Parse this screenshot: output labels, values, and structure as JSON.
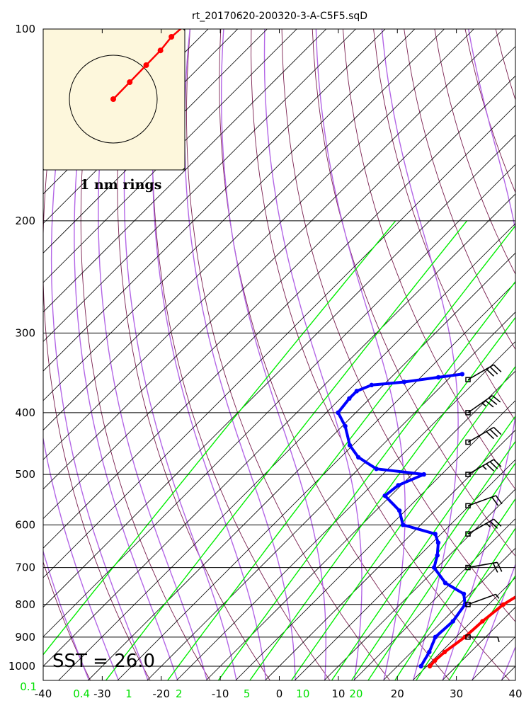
{
  "chart_data": {
    "type": "skew-t",
    "title": "rt_20170620-200320-3-A-C5F5.sqD",
    "pressure_ticks": [
      100,
      200,
      300,
      400,
      500,
      600,
      700,
      800,
      900,
      1000
    ],
    "temperature_ticks": [
      -40,
      -30,
      -20,
      -10,
      0,
      10,
      20,
      30,
      40
    ],
    "mixing_ratio_labels": [
      {
        "label": "0.1",
        "t_at_1000": -42.5
      },
      {
        "label": "0.4",
        "t_at_1000": -33.5
      },
      {
        "label": "1",
        "t_at_1000": -25.5
      },
      {
        "label": "2",
        "t_at_1000": -17
      },
      {
        "label": "5",
        "t_at_1000": -5.5
      },
      {
        "label": "10",
        "t_at_1000": 4
      },
      {
        "label": "20",
        "t_at_1000": 13
      }
    ],
    "plim": [
      100,
      1050
    ],
    "xlim": [
      -40,
      40
    ],
    "temperature_profile": [
      {
        "p": 1000,
        "t": 25.5
      },
      {
        "p": 980,
        "t": 25.4
      },
      {
        "p": 950,
        "t": 25.6
      },
      {
        "p": 900,
        "t": 26.5
      },
      {
        "p": 850,
        "t": 26.8
      },
      {
        "p": 800,
        "t": 27.5
      },
      {
        "p": 760,
        "t": 29.0
      },
      {
        "p": 700,
        "t": 29.5
      },
      {
        "p": 660,
        "t": 30.0
      },
      {
        "p": 620,
        "t": 26.5
      },
      {
        "p": 580,
        "t": 21.5
      },
      {
        "p": 550,
        "t": 20.0
      },
      {
        "p": 500,
        "t": 15.5
      },
      {
        "p": 480,
        "t": 13.5
      },
      {
        "p": 460,
        "t": 11.5
      },
      {
        "p": 440,
        "t": 10.5
      },
      {
        "p": 420,
        "t": 9.5
      },
      {
        "p": 400,
        "t": 7.5
      },
      {
        "p": 380,
        "t": 5.2
      },
      {
        "p": 360,
        "t": 3.0
      },
      {
        "p": 350,
        "t": 1.5
      }
    ],
    "dewpoint_profile": [
      {
        "p": 1000,
        "t": 24.0
      },
      {
        "p": 950,
        "t": 23.0
      },
      {
        "p": 900,
        "t": 21.5
      },
      {
        "p": 850,
        "t": 21.8
      },
      {
        "p": 800,
        "t": 21.0
      },
      {
        "p": 770,
        "t": 19.0
      },
      {
        "p": 740,
        "t": 14.0
      },
      {
        "p": 700,
        "t": 9.5
      },
      {
        "p": 670,
        "t": 8.0
      },
      {
        "p": 640,
        "t": 6.0
      },
      {
        "p": 620,
        "t": 4.0
      },
      {
        "p": 600,
        "t": -3.0
      },
      {
        "p": 570,
        "t": -6.0
      },
      {
        "p": 540,
        "t": -11.0
      },
      {
        "p": 520,
        "t": -10.5
      },
      {
        "p": 500,
        "t": -8.0
      },
      {
        "p": 490,
        "t": -17.0
      },
      {
        "p": 470,
        "t": -22.0
      },
      {
        "p": 450,
        "t": -25.5
      },
      {
        "p": 420,
        "t": -29.5
      },
      {
        "p": 400,
        "t": -33.0
      },
      {
        "p": 380,
        "t": -33.5
      },
      {
        "p": 370,
        "t": -33.5
      },
      {
        "p": 362,
        "t": -32.0
      },
      {
        "p": 358,
        "t": -27.0
      },
      {
        "p": 352,
        "t": -22.0
      },
      {
        "p": 348,
        "t": -18.5
      }
    ],
    "wind_barbs": [
      {
        "p": 355,
        "dir": 240,
        "spd": 30
      },
      {
        "p": 400,
        "dir": 235,
        "spd": 35
      },
      {
        "p": 445,
        "dir": 240,
        "spd": 30
      },
      {
        "p": 500,
        "dir": 240,
        "spd": 35
      },
      {
        "p": 560,
        "dir": 250,
        "spd": 20
      },
      {
        "p": 620,
        "dir": 240,
        "spd": 25
      },
      {
        "p": 700,
        "dir": 260,
        "spd": 20
      },
      {
        "p": 800,
        "dir": 250,
        "spd": 5
      },
      {
        "p": 900,
        "dir": 270,
        "spd": 5
      }
    ],
    "hodograph": {
      "label": "1 nm rings",
      "points": [
        [
          -0.65,
          -0.05
        ],
        [
          -0.5,
          0.1
        ],
        [
          -0.35,
          0.25
        ],
        [
          -0.22,
          0.38
        ],
        [
          -0.12,
          0.5
        ],
        [
          0.0,
          0.6
        ],
        [
          0.12,
          0.62
        ],
        [
          0.27,
          0.4
        ],
        [
          0.45,
          0.2
        ]
      ]
    },
    "sst_label": "SST = 26.0"
  },
  "colors": {
    "temperature": "#ff0000",
    "dewpoint": "#0000ff",
    "mixing_ratio": "#00ee00",
    "dry_adiabat": "#7a1f4f",
    "moist_adiabat": "#b366e6",
    "isotherm": "#000000",
    "hodograph_bg": "#fdf7dc"
  }
}
